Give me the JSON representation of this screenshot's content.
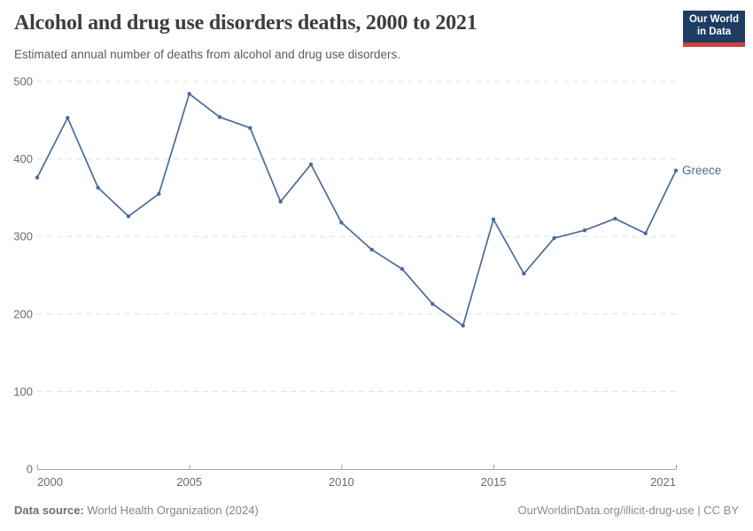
{
  "header": {
    "title": "Alcohol and drug use disorders deaths, 2000 to 2021",
    "subtitle": "Estimated annual number of deaths from alcohol and drug use disorders."
  },
  "logo": {
    "line1": "Our World",
    "line2": "in Data",
    "bg_color": "#1d3d63",
    "stripe_color": "#d0403d"
  },
  "chart_data": {
    "type": "line",
    "title": "Alcohol and drug use disorders deaths, 2000 to 2021",
    "x": [
      2000,
      2001,
      2002,
      2003,
      2004,
      2005,
      2006,
      2007,
      2008,
      2009,
      2010,
      2011,
      2012,
      2013,
      2014,
      2015,
      2016,
      2017,
      2018,
      2019,
      2020,
      2021
    ],
    "series": [
      {
        "name": "Greece",
        "color": "#4c6a9c",
        "values": [
          376,
          453,
          363,
          326,
          355,
          484,
          454,
          440,
          345,
          393,
          318,
          283,
          258,
          213,
          185,
          322,
          252,
          298,
          308,
          323,
          304,
          385
        ]
      }
    ],
    "xlabel": "",
    "ylabel": "",
    "xlim": [
      2000,
      2021
    ],
    "ylim": [
      0,
      500
    ],
    "yticks": [
      0,
      100,
      200,
      300,
      400,
      500
    ],
    "xticks": [
      2000,
      2005,
      2010,
      2015,
      2021
    ],
    "grid": "horizontal-dashed",
    "legend_position": "end-of-line-label",
    "colors": {
      "grid": "#e0e0e0",
      "axis": "#a5a5a5",
      "tick_label": "#6b6b6b"
    }
  },
  "footer": {
    "source_label": "Data source:",
    "source_text": " World Health Organization (2024)",
    "credit": "OurWorldinData.org/illicit-drug-use | CC BY"
  }
}
